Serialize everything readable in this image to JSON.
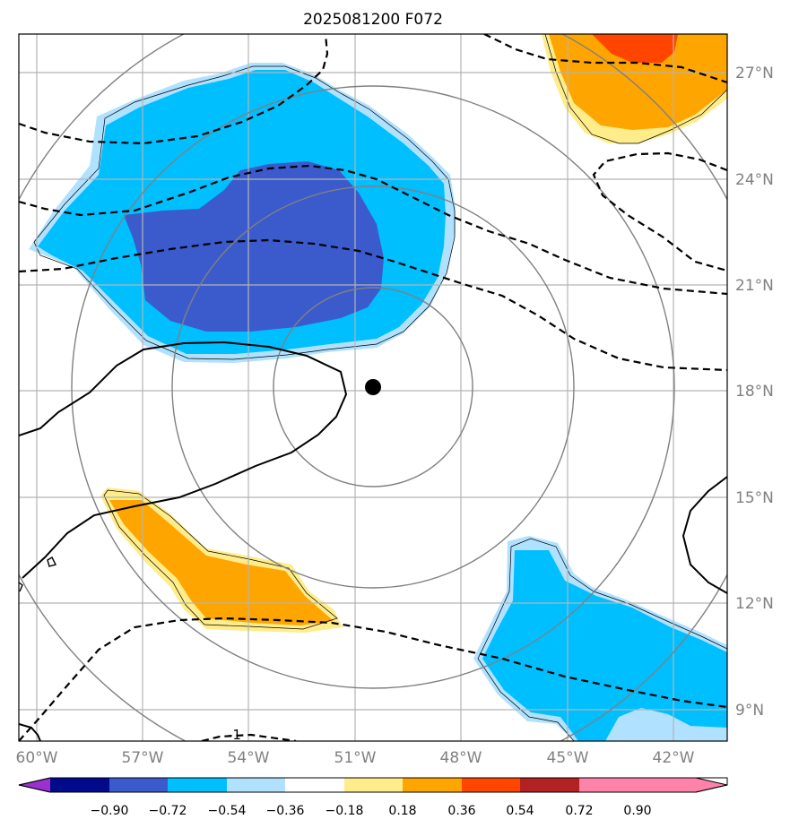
{
  "title": "2025081200 F072",
  "map": {
    "lon_range": [
      -60.5,
      -40.5
    ],
    "lat_range": [
      8,
      28
    ],
    "lon_ticks": [
      {
        "value": -60,
        "label": "60°W"
      },
      {
        "value": -57,
        "label": "57°W"
      },
      {
        "value": -54,
        "label": "54°W"
      },
      {
        "value": -51,
        "label": "51°W"
      },
      {
        "value": -48,
        "label": "48°W"
      },
      {
        "value": -45,
        "label": "45°W"
      },
      {
        "value": -42,
        "label": "42°W"
      }
    ],
    "lat_ticks": [
      {
        "value": 9,
        "label": "9°N"
      },
      {
        "value": 12,
        "label": "12°N"
      },
      {
        "value": 15,
        "label": "15°N"
      },
      {
        "value": 18,
        "label": "18°N"
      },
      {
        "value": 21,
        "label": "21°N"
      },
      {
        "value": 24,
        "label": "24°N"
      },
      {
        "value": 27,
        "label": "27°N"
      }
    ],
    "center": {
      "lon": -50.4,
      "lat": 18.1
    },
    "range_rings_deg": [
      2.8,
      5.6,
      8.4,
      11.2
    ],
    "contour_label": "-1",
    "grid": true
  },
  "colorbar": {
    "labels": [
      "−0.90",
      "−0.72",
      "−0.54",
      "−0.36",
      "−0.18",
      "0.18",
      "0.36",
      "0.54",
      "0.72",
      "0.90"
    ],
    "colors": [
      "#9b30d0",
      "#000a8b",
      "#3b5bcc",
      "#00bfff",
      "#b0e2ff",
      "#ffffff",
      "#ffec8b",
      "#ffa500",
      "#ff4500",
      "#b22222",
      "#ff82ab"
    ]
  }
}
